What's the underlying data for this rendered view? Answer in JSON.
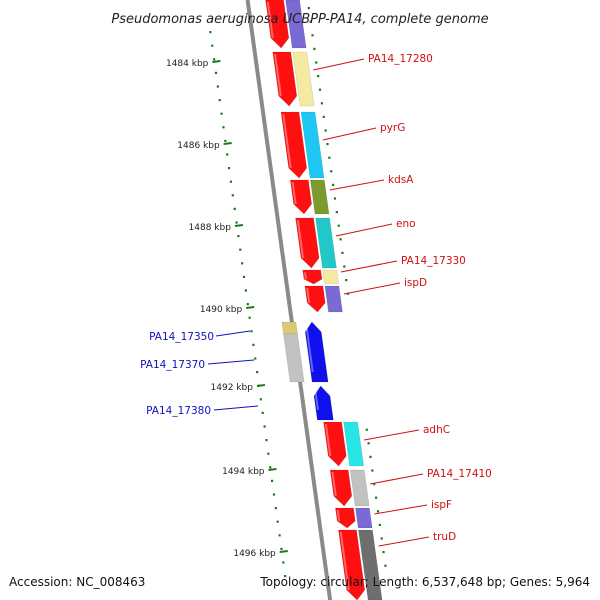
{
  "title": "Pseudomonas aeruginosa UCBPP-PA14, complete genome",
  "footer": {
    "accession": "Accession: NC_008463",
    "summary": "Topology: circular; Length: 6,537,648 bp; Genes: 5,964"
  },
  "colors": {
    "background": "#ffffff",
    "ruler_tick": "#1a7a1a",
    "genome_line": "#8a8a8a",
    "forward_gene": "#ff1010",
    "reverse_gene": "#1010ee",
    "label_forward": "#d01010",
    "label_reverse": "#1010c0"
  },
  "ruler": {
    "labels": [
      "1484 kbp",
      "1486 kbp",
      "1488 kbp",
      "1490 kbp",
      "1492 kbp",
      "1494 kbp",
      "1496 kbp"
    ]
  },
  "genes_right": [
    {
      "label": "PA14_17280",
      "category_color": "#f4eaa0"
    },
    {
      "label": "pyrG",
      "category_color": "#1ec8f2"
    },
    {
      "label": "kdsA",
      "category_color": "#7d9a2e"
    },
    {
      "label": "eno",
      "category_color": "#22c8c8"
    },
    {
      "label": "PA14_17330",
      "category_color": "#f4eaa0"
    },
    {
      "label": "ispD",
      "category_color": "#7a6ad4"
    },
    {
      "label": "adhC",
      "category_color": "#28e6e6"
    },
    {
      "label": "PA14_17410",
      "category_color": "#c2c2c2"
    },
    {
      "label": "ispF",
      "category_color": "#7a6ad4"
    },
    {
      "label": "truD",
      "category_color": "#6e6e6e"
    }
  ],
  "genes_left": [
    {
      "label": "PA14_17350",
      "category_color": "#d8c878"
    },
    {
      "label": "PA14_17370",
      "category_color": "#c2c2c2"
    },
    {
      "label": "PA14_17380",
      "category_color": "#c2c2c2"
    }
  ]
}
